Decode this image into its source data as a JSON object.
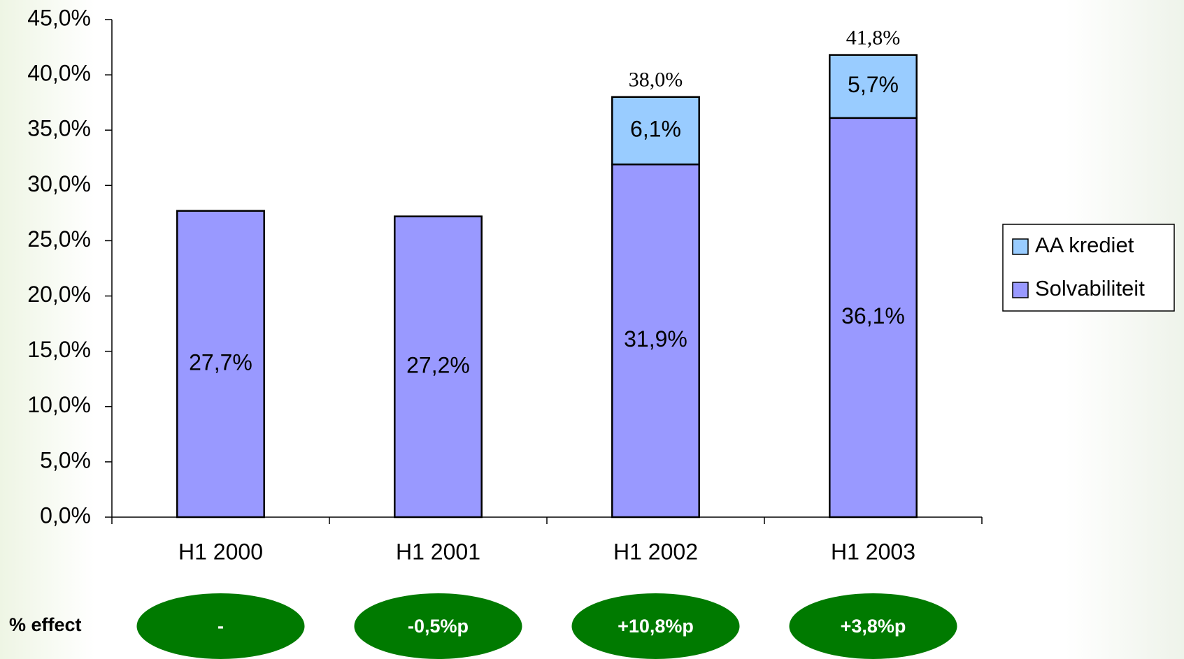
{
  "chart_data": {
    "type": "stacked-bar",
    "categories": [
      "H1 2000",
      "H1 2001",
      "H1 2002",
      "H1 2003"
    ],
    "series": [
      {
        "name": "Solvabiliteit",
        "color": "#9999ff",
        "values": [
          27.7,
          27.2,
          31.9,
          36.1
        ],
        "value_labels": [
          "27,7%",
          "27,2%",
          "31,9%",
          "36,1%"
        ]
      },
      {
        "name": "AA krediet",
        "color": "#99ccff",
        "values": [
          null,
          null,
          6.1,
          5.7
        ],
        "value_labels": [
          null,
          null,
          "6,1%",
          "5,7%"
        ]
      }
    ],
    "totals": {
      "values": [
        null,
        null,
        38.0,
        41.8
      ],
      "value_labels": [
        null,
        null,
        "38,0%",
        "41,8%"
      ]
    },
    "ylim": [
      0,
      45
    ],
    "yticks": [
      {
        "value": 0,
        "label": "0,0%"
      },
      {
        "value": 5,
        "label": "5,0%"
      },
      {
        "value": 10,
        "label": "10,0%"
      },
      {
        "value": 15,
        "label": "15,0%"
      },
      {
        "value": 20,
        "label": "20,0%"
      },
      {
        "value": 25,
        "label": "25,0%"
      },
      {
        "value": 30,
        "label": "30,0%"
      },
      {
        "value": 35,
        "label": "35,0%"
      },
      {
        "value": 40,
        "label": "40,0%"
      },
      {
        "value": 45,
        "label": "45,0%"
      }
    ],
    "legend": "right",
    "effects": {
      "label": "% effect",
      "color": "#007a00",
      "values": [
        "-",
        "-0,5%p",
        "+10,8%p",
        "+3,8%p"
      ]
    }
  }
}
